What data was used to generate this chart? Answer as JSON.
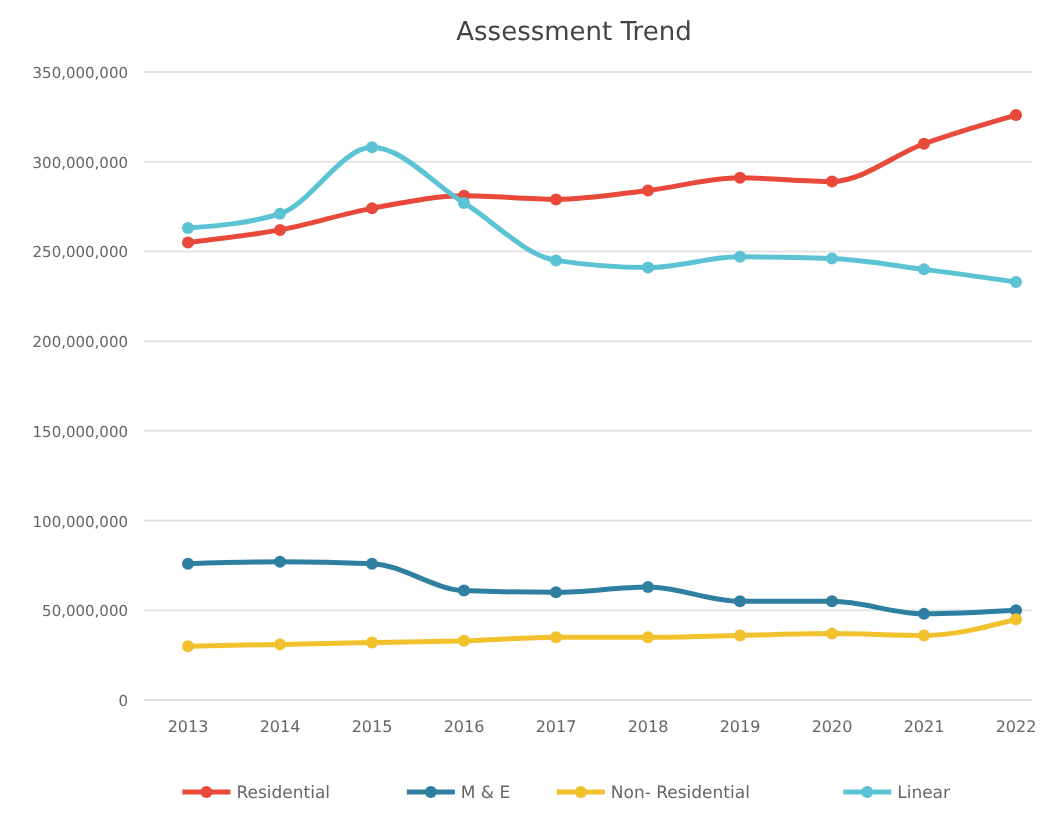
{
  "chart_data": {
    "type": "line",
    "title": "Assessment Trend",
    "categories": [
      "2013",
      "2014",
      "2015",
      "2016",
      "2017",
      "2018",
      "2019",
      "2020",
      "2021",
      "2022"
    ],
    "series": [
      {
        "name": "Residential",
        "color": "#e8493a",
        "values": [
          255000000,
          262000000,
          274000000,
          281000000,
          279000000,
          284000000,
          291000000,
          289000000,
          310000000,
          326000000
        ]
      },
      {
        "name": "M & E",
        "color": "#2f7fa0",
        "values": [
          76000000,
          77000000,
          76000000,
          61000000,
          60000000,
          63000000,
          55000000,
          55000000,
          48000000,
          50000000
        ]
      },
      {
        "name": "Non- Residential",
        "color": "#f2c12e",
        "values": [
          30000000,
          31000000,
          32000000,
          33000000,
          35000000,
          35000000,
          36000000,
          37000000,
          36000000,
          45000000
        ]
      },
      {
        "name": "Linear",
        "color": "#5bc3d3",
        "values": [
          263000000,
          271000000,
          308000000,
          277000000,
          245000000,
          241000000,
          247000000,
          246000000,
          240000000,
          233000000
        ]
      }
    ],
    "ylim": [
      0,
      350000000
    ],
    "yticks": [
      {
        "value": 0,
        "label": "0"
      },
      {
        "value": 50000000,
        "label": "50,000,000"
      },
      {
        "value": 100000000,
        "label": "100,000,000"
      },
      {
        "value": 150000000,
        "label": "150,000,000"
      },
      {
        "value": 200000000,
        "label": "200,000,000"
      },
      {
        "value": 250000000,
        "label": "250,000,000"
      },
      {
        "value": 300000000,
        "label": "300,000,000"
      },
      {
        "value": 350000000,
        "label": "350,000,000"
      }
    ],
    "grid": "y",
    "legend": "bottom",
    "marker": "circle",
    "line_style": "solid"
  }
}
